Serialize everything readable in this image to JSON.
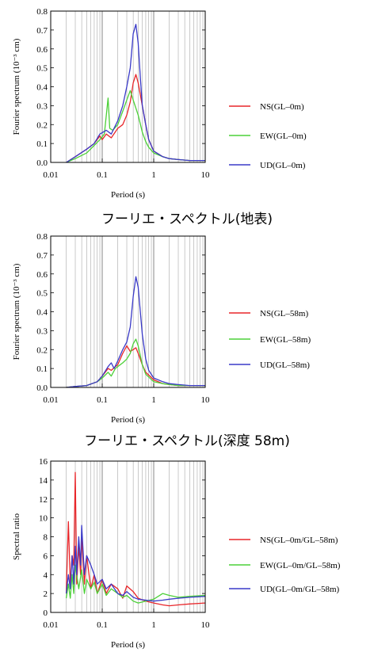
{
  "chart_data": [
    {
      "type": "line",
      "title": "",
      "xlabel": "Period (s)",
      "ylabel": "Fourier spectrum (10⁻³ cm)",
      "xscale": "log",
      "xlim": [
        0.01,
        10
      ],
      "ylim": [
        0,
        0.8
      ],
      "xticks": [
        "0.01",
        "0.1",
        "1",
        "10"
      ],
      "yticks": [
        "0.0",
        "0.1",
        "0.2",
        "0.3",
        "0.4",
        "0.5",
        "0.6",
        "0.7",
        "0.8"
      ],
      "grid": "vertical",
      "legend": "right",
      "caption": "フーリエ・スペクトル(地表)",
      "series": [
        {
          "name": "NS(GL–0m)",
          "color": "#e8262a",
          "x": [
            0.02,
            0.03,
            0.05,
            0.07,
            0.09,
            0.1,
            0.12,
            0.15,
            0.2,
            0.25,
            0.3,
            0.35,
            0.4,
            0.45,
            0.5,
            0.6,
            0.7,
            0.8,
            1,
            1.5,
            2,
            3,
            5,
            10
          ],
          "y": [
            0.0,
            0.03,
            0.07,
            0.1,
            0.14,
            0.12,
            0.15,
            0.13,
            0.18,
            0.2,
            0.25,
            0.32,
            0.42,
            0.465,
            0.42,
            0.3,
            0.2,
            0.12,
            0.06,
            0.03,
            0.02,
            0.015,
            0.01,
            0.01
          ]
        },
        {
          "name": "EW(GL–0m)",
          "color": "#4cd038",
          "x": [
            0.02,
            0.03,
            0.05,
            0.07,
            0.09,
            0.11,
            0.13,
            0.14,
            0.16,
            0.2,
            0.25,
            0.3,
            0.35,
            0.4,
            0.5,
            0.6,
            0.7,
            0.8,
            1,
            1.5,
            2,
            3,
            5,
            10
          ],
          "y": [
            0.0,
            0.02,
            0.05,
            0.09,
            0.12,
            0.15,
            0.34,
            0.18,
            0.17,
            0.2,
            0.27,
            0.33,
            0.38,
            0.33,
            0.25,
            0.16,
            0.11,
            0.08,
            0.05,
            0.03,
            0.02,
            0.015,
            0.01,
            0.01
          ]
        },
        {
          "name": "UD(GL–0m)",
          "color": "#3a3ac8",
          "x": [
            0.02,
            0.03,
            0.05,
            0.07,
            0.09,
            0.12,
            0.15,
            0.2,
            0.25,
            0.3,
            0.35,
            0.4,
            0.45,
            0.5,
            0.55,
            0.6,
            0.7,
            0.8,
            1,
            1.5,
            2,
            3,
            5,
            10
          ],
          "y": [
            0.0,
            0.03,
            0.07,
            0.1,
            0.15,
            0.17,
            0.15,
            0.22,
            0.3,
            0.4,
            0.5,
            0.68,
            0.73,
            0.63,
            0.45,
            0.3,
            0.2,
            0.12,
            0.06,
            0.03,
            0.02,
            0.015,
            0.01,
            0.01
          ]
        }
      ]
    },
    {
      "type": "line",
      "title": "",
      "xlabel": "Period (s)",
      "ylabel": "Fourier spectrum (10⁻³ cm)",
      "xscale": "log",
      "xlim": [
        0.01,
        10
      ],
      "ylim": [
        0,
        0.8
      ],
      "xticks": [
        "0.01",
        "0.1",
        "1",
        "10"
      ],
      "yticks": [
        "0.0",
        "0.1",
        "0.2",
        "0.3",
        "0.4",
        "0.5",
        "0.6",
        "0.7",
        "0.8"
      ],
      "grid": "vertical",
      "legend": "right",
      "caption": "フーリエ・スペクトル(深度 58m)",
      "series": [
        {
          "name": "NS(GL–58m)",
          "color": "#e8262a",
          "x": [
            0.02,
            0.03,
            0.05,
            0.08,
            0.1,
            0.13,
            0.15,
            0.18,
            0.2,
            0.25,
            0.3,
            0.35,
            0.4,
            0.45,
            0.5,
            0.6,
            0.7,
            1,
            1.5,
            2,
            3,
            5,
            10
          ],
          "y": [
            0.0,
            0.005,
            0.01,
            0.03,
            0.06,
            0.1,
            0.09,
            0.11,
            0.12,
            0.18,
            0.22,
            0.19,
            0.2,
            0.21,
            0.18,
            0.12,
            0.08,
            0.04,
            0.02,
            0.015,
            0.01,
            0.01,
            0.01
          ]
        },
        {
          "name": "EW(GL–58m)",
          "color": "#4cd038",
          "x": [
            0.02,
            0.03,
            0.05,
            0.08,
            0.1,
            0.13,
            0.15,
            0.18,
            0.2,
            0.25,
            0.3,
            0.35,
            0.4,
            0.45,
            0.5,
            0.6,
            0.7,
            1,
            1.5,
            2,
            3,
            5,
            10
          ],
          "y": [
            0.0,
            0.005,
            0.01,
            0.03,
            0.05,
            0.08,
            0.06,
            0.1,
            0.11,
            0.13,
            0.15,
            0.18,
            0.23,
            0.255,
            0.22,
            0.12,
            0.07,
            0.03,
            0.02,
            0.015,
            0.01,
            0.01,
            0.01
          ]
        },
        {
          "name": "UD(GL–58m)",
          "color": "#3a3ac8",
          "x": [
            0.02,
            0.03,
            0.05,
            0.08,
            0.1,
            0.13,
            0.15,
            0.17,
            0.2,
            0.25,
            0.3,
            0.35,
            0.4,
            0.45,
            0.5,
            0.55,
            0.6,
            0.7,
            0.8,
            1,
            1.5,
            2,
            3,
            5,
            10
          ],
          "y": [
            0.0,
            0.005,
            0.01,
            0.03,
            0.06,
            0.11,
            0.13,
            0.1,
            0.14,
            0.2,
            0.24,
            0.32,
            0.48,
            0.585,
            0.53,
            0.4,
            0.28,
            0.15,
            0.09,
            0.05,
            0.03,
            0.02,
            0.015,
            0.01,
            0.01
          ]
        }
      ]
    },
    {
      "type": "line",
      "title": "",
      "xlabel": "Period (s)",
      "ylabel": "Spectral ratio",
      "xscale": "log",
      "xlim": [
        0.01,
        10
      ],
      "ylim": [
        0,
        16
      ],
      "xticks": [
        "0.01",
        "0.1",
        "1",
        "10"
      ],
      "yticks": [
        "0",
        "2",
        "4",
        "6",
        "8",
        "10",
        "12",
        "14",
        "16"
      ],
      "grid": "vertical",
      "legend": "right",
      "series": [
        {
          "name": "NS(GL–0m/GL–58m)",
          "color": "#e8262a",
          "x": [
            0.02,
            0.022,
            0.024,
            0.026,
            0.028,
            0.03,
            0.032,
            0.035,
            0.038,
            0.04,
            0.045,
            0.05,
            0.06,
            0.07,
            0.08,
            0.1,
            0.12,
            0.15,
            0.2,
            0.25,
            0.3,
            0.4,
            0.5,
            0.7,
            1,
            1.5,
            2,
            3,
            5,
            10
          ],
          "y": [
            2,
            9.6,
            3,
            6,
            5,
            14.8,
            3,
            7,
            4,
            8,
            3,
            6,
            2.5,
            4,
            2,
            3.5,
            2,
            3,
            2.5,
            1.5,
            2.8,
            2.2,
            1.5,
            1.2,
            1.0,
            0.8,
            0.7,
            0.8,
            0.9,
            1.0
          ]
        },
        {
          "name": "EW(GL–0m/GL–58m)",
          "color": "#4cd038",
          "x": [
            0.02,
            0.022,
            0.024,
            0.026,
            0.028,
            0.03,
            0.035,
            0.04,
            0.045,
            0.05,
            0.06,
            0.07,
            0.08,
            0.1,
            0.12,
            0.15,
            0.2,
            0.25,
            0.3,
            0.4,
            0.5,
            0.7,
            1,
            1.5,
            2,
            3,
            5,
            10
          ],
          "y": [
            1.5,
            3,
            1.5,
            4,
            2,
            5,
            2.5,
            4.5,
            2,
            3.5,
            2.5,
            3.2,
            2,
            3,
            1.8,
            2.5,
            2,
            1.6,
            1.8,
            1.2,
            1.0,
            1.2,
            1.4,
            2.0,
            1.8,
            1.6,
            1.7,
            1.8
          ]
        },
        {
          "name": "UD(GL–0m/GL–58m)",
          "color": "#3a3ac8",
          "x": [
            0.02,
            0.022,
            0.024,
            0.026,
            0.028,
            0.03,
            0.032,
            0.035,
            0.038,
            0.04,
            0.045,
            0.05,
            0.06,
            0.07,
            0.08,
            0.1,
            0.12,
            0.15,
            0.2,
            0.25,
            0.3,
            0.4,
            0.5,
            0.7,
            1,
            1.5,
            2,
            3,
            5,
            10
          ],
          "y": [
            2,
            4,
            2.5,
            6,
            3,
            7,
            4,
            8,
            5,
            9.2,
            4,
            6,
            5,
            4,
            3,
            3.5,
            2.5,
            3,
            2,
            1.8,
            2.2,
            1.6,
            1.4,
            1.3,
            1.2,
            1.3,
            1.4,
            1.5,
            1.6,
            1.7
          ]
        }
      ]
    }
  ],
  "captions": {
    "top": "フーリエ・スペクトル(地表)",
    "middle": "フーリエ・スペクトル(深度 58m)"
  }
}
